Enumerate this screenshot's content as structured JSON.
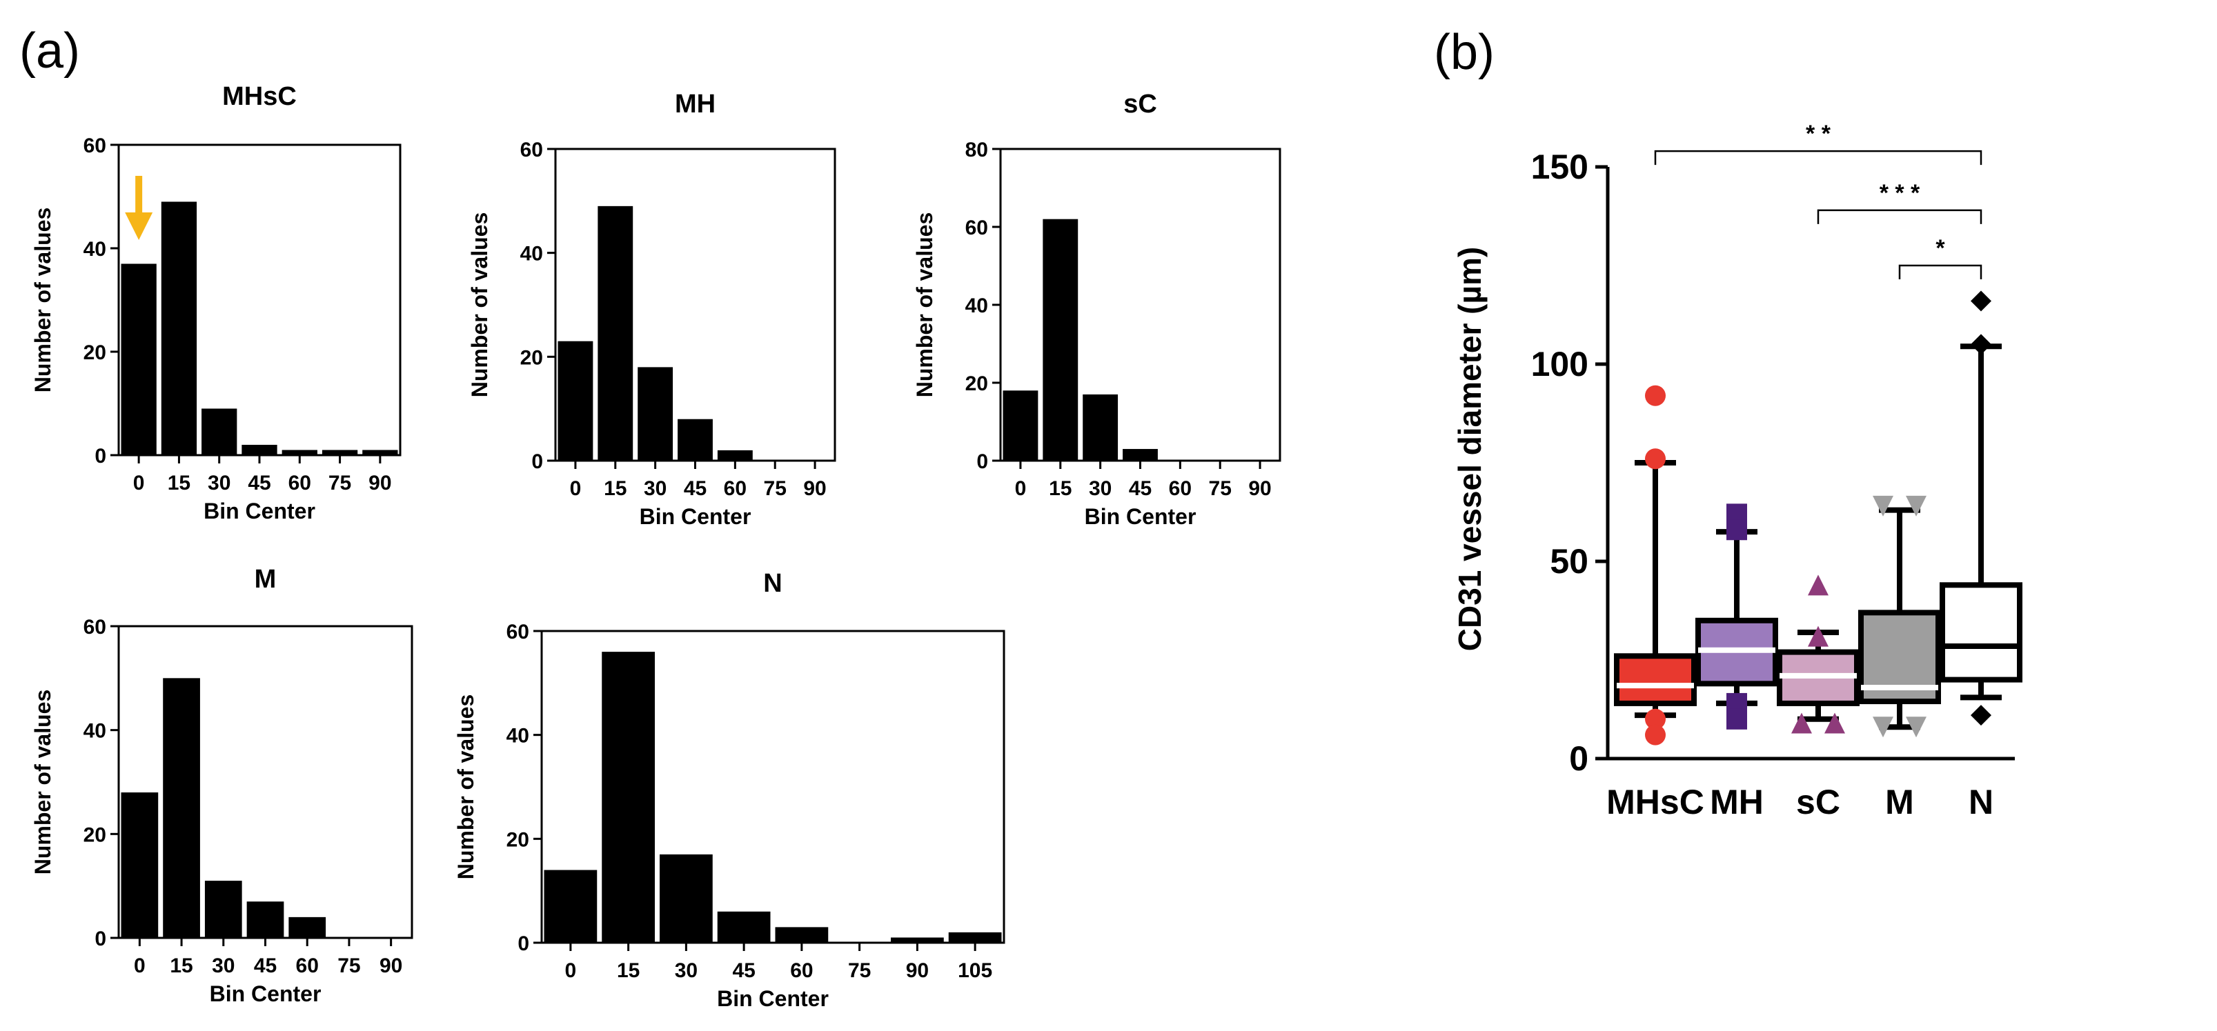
{
  "panel_a_label": "(a)",
  "panel_b_label": "(b)",
  "chart_data": [
    {
      "type": "bar",
      "title": "MHsC",
      "categories": [
        "0",
        "15",
        "30",
        "45",
        "60",
        "75",
        "90"
      ],
      "values": [
        37,
        49,
        9,
        2,
        1,
        1,
        1
      ],
      "xlabel": "Bin Center",
      "ylabel": "Number of values",
      "ylim": [
        0,
        60
      ],
      "yticks": [
        0,
        20,
        40,
        60
      ],
      "annotation": "yellow-down-arrow-over-bin-0"
    },
    {
      "type": "bar",
      "title": "MH",
      "categories": [
        "0",
        "15",
        "30",
        "45",
        "60",
        "75",
        "90"
      ],
      "values": [
        23,
        49,
        18,
        8,
        2,
        0,
        0
      ],
      "xlabel": "Bin Center",
      "ylabel": "Number of values",
      "ylim": [
        0,
        60
      ],
      "yticks": [
        0,
        20,
        40,
        60
      ]
    },
    {
      "type": "bar",
      "title": "sC",
      "categories": [
        "0",
        "15",
        "30",
        "45",
        "60",
        "75",
        "90"
      ],
      "values": [
        18,
        62,
        17,
        3,
        0,
        0,
        0
      ],
      "xlabel": "Bin Center",
      "ylabel": "Number of values",
      "ylim": [
        0,
        80
      ],
      "yticks": [
        0,
        20,
        40,
        60,
        80
      ]
    },
    {
      "type": "bar",
      "title": "M",
      "categories": [
        "0",
        "15",
        "30",
        "45",
        "60",
        "75",
        "90"
      ],
      "values": [
        28,
        50,
        11,
        7,
        4,
        0,
        0
      ],
      "xlabel": "Bin Center",
      "ylabel": "Number of values",
      "ylim": [
        0,
        60
      ],
      "yticks": [
        0,
        20,
        40,
        60
      ]
    },
    {
      "type": "bar",
      "title": "N",
      "categories": [
        "0",
        "15",
        "30",
        "45",
        "60",
        "75",
        "90",
        "105"
      ],
      "values": [
        14,
        56,
        17,
        6,
        3,
        0,
        1,
        2
      ],
      "xlabel": "Bin Center",
      "ylabel": "Number of values",
      "ylim": [
        0,
        60
      ],
      "yticks": [
        0,
        20,
        40,
        60
      ]
    },
    {
      "type": "box",
      "title": "",
      "categories": [
        "MHsC",
        "MH",
        "sC",
        "M",
        "N"
      ],
      "ylabel": "CD31 vessel diameter  (µm)",
      "ylim": [
        0,
        150
      ],
      "yticks": [
        0,
        50,
        100,
        150
      ],
      "series": [
        {
          "name": "MHsC",
          "color": "#e8392f",
          "marker": "circle",
          "q1": 14,
          "median": 18.5,
          "q3": 26,
          "whisker_low": 11,
          "whisker_high": 75,
          "outliers": [
            92,
            76,
            10,
            6
          ]
        },
        {
          "name": "MH",
          "color": "#9b7bbd",
          "marker": "square",
          "q1": 19,
          "median": 27.5,
          "q3": 35,
          "whisker_low": 14,
          "whisker_high": 57.5,
          "outliers": [
            62,
            58,
            14,
            10
          ]
        },
        {
          "name": "sC",
          "color": "#cfa3c1",
          "marker": "triangle-up",
          "q1": 14,
          "median": 21,
          "q3": 27,
          "whisker_low": 10,
          "whisker_high": 32,
          "outliers": [
            44,
            31,
            9,
            9
          ]
        },
        {
          "name": "M",
          "color": "#9e9e9e",
          "marker": "triangle-down",
          "q1": 14.5,
          "median": 18,
          "q3": 37,
          "whisker_low": 8,
          "whisker_high": 63,
          "outliers": [
            64,
            64,
            8,
            8
          ]
        },
        {
          "name": "N",
          "color": "#ffffff",
          "marker": "diamond",
          "q1": 20,
          "median": 28.5,
          "q3": 44,
          "whisker_low": 15.5,
          "whisker_high": 104.5,
          "outliers": [
            116,
            105,
            11
          ]
        }
      ],
      "significance": [
        {
          "from": "MHsC",
          "to": "N",
          "label": "* *",
          "y": 154
        },
        {
          "from": "sC",
          "to": "N",
          "label": "* * *",
          "y": 139
        },
        {
          "from": "M",
          "to": "N",
          "label": "*",
          "y": 125
        }
      ]
    }
  ]
}
